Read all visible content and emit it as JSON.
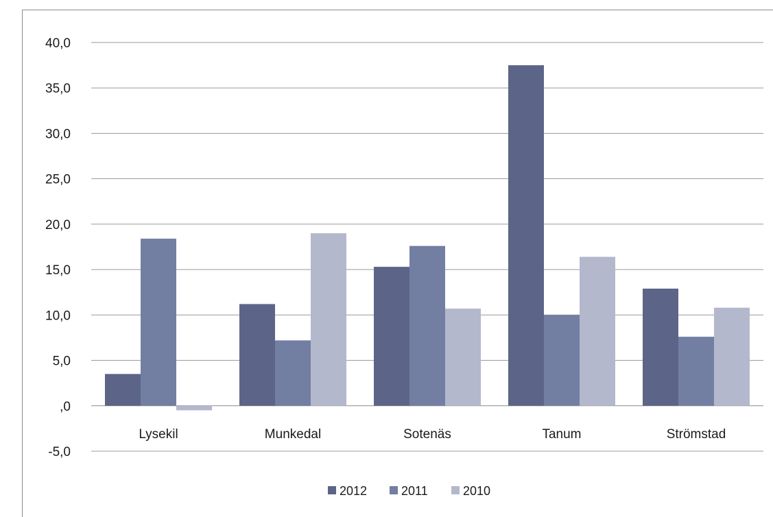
{
  "chart_data": {
    "type": "bar",
    "categories": [
      "Lysekil",
      "Munkedal",
      "Sotenäs",
      "Tanum",
      "Strömstad"
    ],
    "series": [
      {
        "name": "2012",
        "color": "#5c6587",
        "values": [
          3.5,
          11.2,
          15.3,
          37.5,
          12.9
        ]
      },
      {
        "name": "2011",
        "color": "#737ea3",
        "values": [
          18.4,
          7.2,
          17.6,
          10.0,
          7.6
        ]
      },
      {
        "name": "2010",
        "color": "#b4b8cc",
        "values": [
          -0.5,
          19.0,
          10.7,
          16.4,
          10.8
        ]
      }
    ],
    "ylim": [
      -5,
      40
    ],
    "yticks": [
      {
        "value": 40,
        "label": "40,0"
      },
      {
        "value": 35,
        "label": "35,0"
      },
      {
        "value": 30,
        "label": "30,0"
      },
      {
        "value": 25,
        "label": "25,0"
      },
      {
        "value": 20,
        "label": "20,0"
      },
      {
        "value": 15,
        "label": "15,0"
      },
      {
        "value": 10,
        "label": "10,0"
      },
      {
        "value": 5,
        "label": "5,0"
      },
      {
        "value": 0,
        "label": ",0"
      },
      {
        "value": -5,
        "label": "-5,0"
      }
    ],
    "grid": true,
    "legend_position": "bottom"
  }
}
